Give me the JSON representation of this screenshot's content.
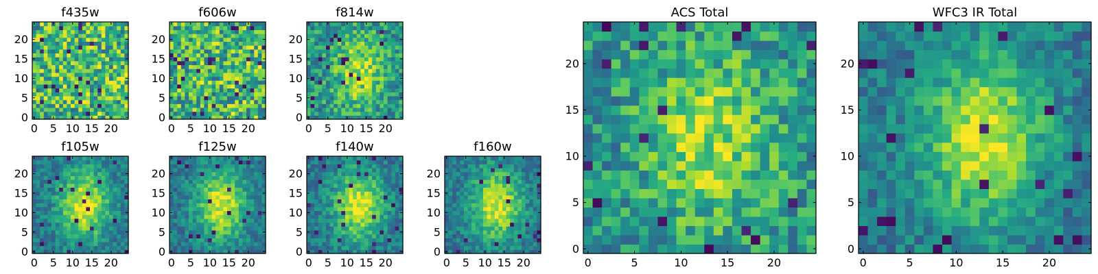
{
  "chart_data": {
    "type": "heatmap",
    "colormap": "viridis",
    "grid": false,
    "panels": [
      {
        "id": "f435w",
        "title": "f435w",
        "size": 25,
        "pattern": "noise",
        "seed": 11,
        "xticks": [
          0,
          5,
          10,
          15,
          20
        ],
        "yticks": [
          0,
          5,
          10,
          15,
          20
        ],
        "xlim": [
          -0.5,
          24.5
        ],
        "ylim": [
          -0.5,
          24.5
        ]
      },
      {
        "id": "f606w",
        "title": "f606w",
        "size": 25,
        "pattern": "noise",
        "seed": 23,
        "xticks": [
          0,
          5,
          10,
          15,
          20
        ],
        "yticks": [
          0,
          5,
          10,
          15,
          20
        ],
        "xlim": [
          -0.5,
          24.5
        ],
        "ylim": [
          -0.5,
          24.5
        ]
      },
      {
        "id": "f814w",
        "title": "f814w",
        "size": 25,
        "pattern": "noise-source",
        "seed": 37,
        "xticks": [
          0,
          5,
          10,
          15,
          20
        ],
        "yticks": [
          0,
          5,
          10,
          15,
          20
        ],
        "xlim": [
          -0.5,
          24.5
        ],
        "ylim": [
          -0.5,
          24.5
        ]
      },
      {
        "id": "f105w",
        "title": "f105w",
        "size": 25,
        "pattern": "source",
        "seed": 41,
        "xticks": [
          0,
          5,
          10,
          15,
          20
        ],
        "yticks": [
          0,
          5,
          10,
          15,
          20
        ],
        "xlim": [
          -0.5,
          24.5
        ],
        "ylim": [
          -0.5,
          24.5
        ]
      },
      {
        "id": "f125w",
        "title": "f125w",
        "size": 25,
        "pattern": "source",
        "seed": 53,
        "xticks": [
          0,
          5,
          10,
          15,
          20
        ],
        "yticks": [
          0,
          5,
          10,
          15,
          20
        ],
        "xlim": [
          -0.5,
          24.5
        ],
        "ylim": [
          -0.5,
          24.5
        ]
      },
      {
        "id": "f140w",
        "title": "f140w",
        "size": 25,
        "pattern": "source",
        "seed": 67,
        "xticks": [
          0,
          5,
          10,
          15,
          20
        ],
        "yticks": [
          0,
          5,
          10,
          15,
          20
        ],
        "xlim": [
          -0.5,
          24.5
        ],
        "ylim": [
          -0.5,
          24.5
        ]
      },
      {
        "id": "f160w",
        "title": "f160w",
        "size": 25,
        "pattern": "source",
        "seed": 79,
        "xticks": [
          0,
          5,
          10,
          15,
          20
        ],
        "yticks": [
          0,
          5,
          10,
          15,
          20
        ],
        "xlim": [
          -0.5,
          24.5
        ],
        "ylim": [
          -0.5,
          24.5
        ]
      },
      {
        "id": "acs-total",
        "title": "ACS Total",
        "size": 25,
        "pattern": "noise-source",
        "seed": 97,
        "xticks": [
          0,
          5,
          10,
          15,
          20
        ],
        "yticks": [
          0,
          5,
          10,
          15,
          20
        ],
        "xlim": [
          -0.5,
          24.5
        ],
        "ylim": [
          -0.5,
          24.5
        ]
      },
      {
        "id": "wfc3-ir-total",
        "title": "WFC3 IR Total",
        "size": 25,
        "pattern": "source",
        "seed": 113,
        "xticks": [
          0,
          5,
          10,
          15,
          20
        ],
        "yticks": [
          0,
          5,
          10,
          15,
          20
        ],
        "xlim": [
          -0.5,
          24.5
        ],
        "ylim": [
          -0.5,
          24.5
        ]
      }
    ]
  }
}
